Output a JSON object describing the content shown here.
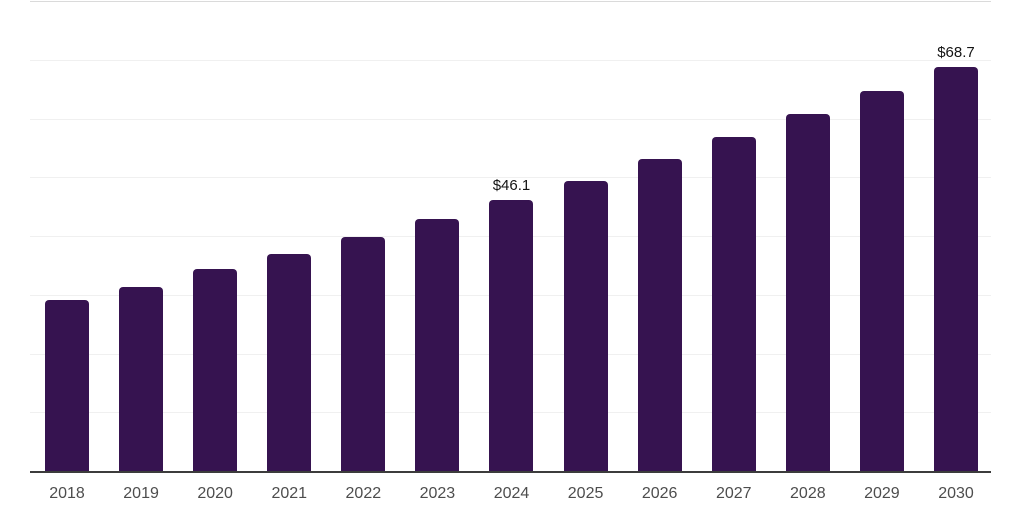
{
  "chart_data": {
    "type": "bar",
    "title": "",
    "xlabel": "",
    "ylabel": "",
    "categories": [
      "2018",
      "2019",
      "2020",
      "2021",
      "2022",
      "2023",
      "2024",
      "2025",
      "2026",
      "2027",
      "2028",
      "2029",
      "2030"
    ],
    "values": [
      29.1,
      31.3,
      34.3,
      36.9,
      39.8,
      42.9,
      46.1,
      49.3,
      53.1,
      56.8,
      60.7,
      64.6,
      68.7
    ],
    "bar_labels": [
      "",
      "",
      "",
      "",
      "",
      "",
      "$46.1",
      "",
      "",
      "",
      "",
      "",
      "$68.7"
    ],
    "ylim": [
      0,
      80
    ],
    "gridline_step": 10,
    "grid": "horizontal",
    "legend": "none",
    "y_axis_labels": "hidden",
    "colors": {
      "bar": "#361350",
      "gridline": "#f0f0f0",
      "top_gridline": "#dadada",
      "axis_line": "#3c3c3c",
      "tick_label": "#4d4d4d",
      "value_label": "#141414",
      "background": "#ffffff"
    }
  }
}
